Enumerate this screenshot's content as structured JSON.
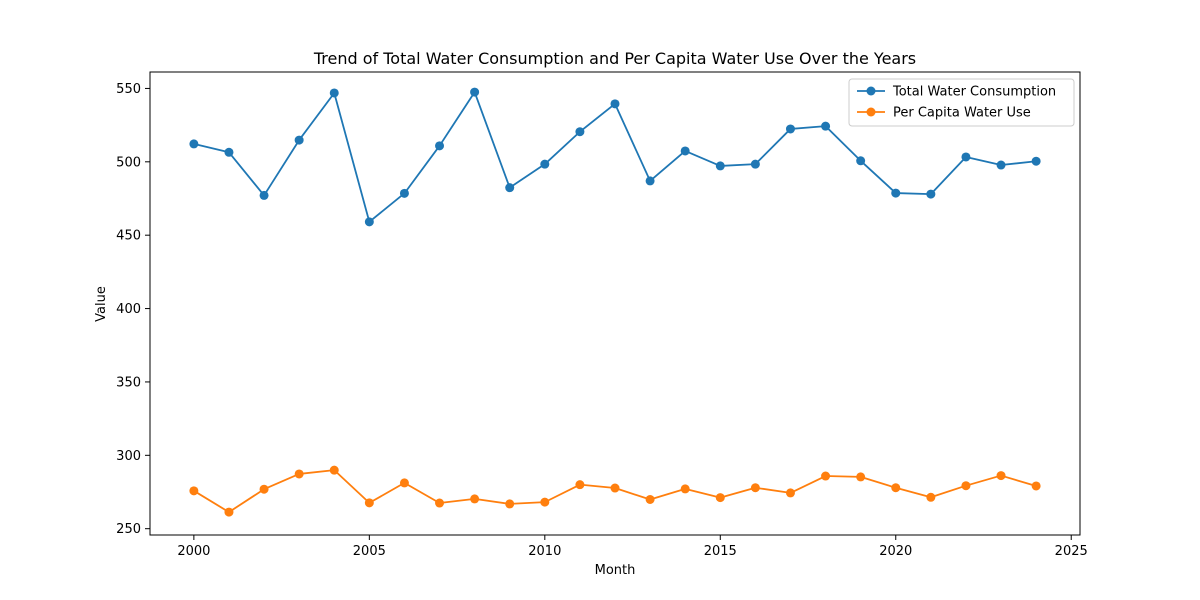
{
  "chart_data": {
    "type": "line",
    "title": "Trend of Total Water Consumption and Per Capita Water Use Over the Years",
    "xlabel": "Month",
    "ylabel": "Value",
    "xlim": [
      1998.75,
      2025.25
    ],
    "ylim": [
      245.7,
      561.2
    ],
    "x_ticks": [
      2000,
      2005,
      2010,
      2015,
      2020,
      2025
    ],
    "y_ticks": [
      250,
      300,
      350,
      400,
      450,
      500,
      550
    ],
    "grid": false,
    "legend_position": "upper-right",
    "x": [
      2000,
      2001,
      2002,
      2003,
      2004,
      2005,
      2006,
      2007,
      2008,
      2009,
      2010,
      2011,
      2012,
      2013,
      2014,
      2015,
      2016,
      2017,
      2018,
      2019,
      2020,
      2021,
      2022,
      2023,
      2024
    ],
    "series": [
      {
        "name": "Total Water Consumption",
        "color": "#1f77b4",
        "marker": "circle",
        "values": [
          512.2,
          506.5,
          477.1,
          514.8,
          546.9,
          459.1,
          478.5,
          510.9,
          547.5,
          482.4,
          498.4,
          520.5,
          539.5,
          487.0,
          507.4,
          497.2,
          498.4,
          522.4,
          524.3,
          500.7,
          478.7,
          478.0,
          503.3,
          497.8,
          500.4
        ]
      },
      {
        "name": "Per Capita Water Use",
        "color": "#ff7f0e",
        "marker": "circle",
        "values": [
          275.8,
          261.3,
          276.9,
          287.3,
          289.9,
          267.6,
          281.2,
          267.5,
          270.3,
          266.9,
          268.1,
          280.0,
          277.7,
          269.9,
          277.1,
          271.2,
          277.9,
          274.4,
          285.9,
          285.3,
          277.9,
          271.4,
          279.3,
          286.2,
          279.1
        ]
      }
    ]
  }
}
